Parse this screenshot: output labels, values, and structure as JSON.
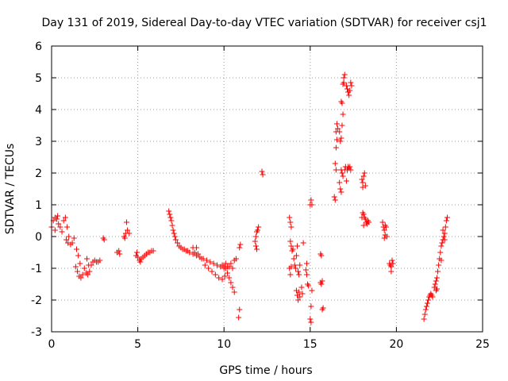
{
  "chart_data": {
    "type": "scatter",
    "title": "Day 131 of 2019, Sidereal Day-to-day VTEC variation (SDTVAR) for receiver csj1",
    "xlabel": "GPS time / hours",
    "ylabel": "SDTVAR / TECUs",
    "xlim": [
      0,
      25
    ],
    "ylim": [
      -3,
      6
    ],
    "xticks": [
      0,
      5,
      10,
      15,
      20,
      25
    ],
    "yticks": [
      -3,
      -2,
      -1,
      0,
      1,
      2,
      3,
      4,
      5,
      6
    ],
    "xtick_labels": [
      "0",
      "5",
      "10",
      "15",
      "20",
      "25"
    ],
    "ytick_labels": [
      "-3",
      "-2",
      "-1",
      "0",
      "1",
      "2",
      "3",
      "4",
      "5",
      "6"
    ],
    "grid": true,
    "marker": "+",
    "color": "#ff0000",
    "series": [
      {
        "name": "csj1",
        "points": [
          [
            0.0,
            0.3
          ],
          [
            0.1,
            0.5
          ],
          [
            0.2,
            0.6
          ],
          [
            0.3,
            0.55
          ],
          [
            0.4,
            0.4
          ],
          [
            0.5,
            0.3
          ],
          [
            0.6,
            0.15
          ],
          [
            0.7,
            0.5
          ],
          [
            0.8,
            0.6
          ],
          [
            0.9,
            0.3
          ],
          [
            1.0,
            0.0
          ],
          [
            1.1,
            -0.25
          ],
          [
            1.2,
            -0.2
          ],
          [
            1.3,
            -0.05
          ],
          [
            0.2,
            0.2
          ],
          [
            0.35,
            0.65
          ],
          [
            0.85,
            -0.1
          ],
          [
            0.95,
            -0.2
          ],
          [
            1.4,
            -0.95
          ],
          [
            1.5,
            -1.1
          ],
          [
            1.6,
            -1.25
          ],
          [
            1.7,
            -1.3
          ],
          [
            1.8,
            -1.2
          ],
          [
            1.9,
            -1.0
          ],
          [
            2.0,
            -1.15
          ],
          [
            2.1,
            -1.2
          ],
          [
            2.2,
            -1.1
          ],
          [
            2.3,
            -0.9
          ],
          [
            2.4,
            -0.8
          ],
          [
            2.5,
            -0.75
          ],
          [
            2.6,
            -0.8
          ],
          [
            2.7,
            -0.8
          ],
          [
            2.8,
            -0.75
          ],
          [
            1.45,
            -0.4
          ],
          [
            1.55,
            -0.6
          ],
          [
            1.65,
            -0.85
          ],
          [
            2.05,
            -0.7
          ],
          [
            2.15,
            -0.9
          ],
          [
            3.0,
            -0.05
          ],
          [
            3.05,
            -0.1
          ],
          [
            3.8,
            -0.5
          ],
          [
            3.9,
            -0.45
          ],
          [
            3.95,
            -0.55
          ],
          [
            4.2,
            0.0
          ],
          [
            4.3,
            0.1
          ],
          [
            4.4,
            0.2
          ],
          [
            4.5,
            0.1
          ],
          [
            4.35,
            0.45
          ],
          [
            4.25,
            -0.05
          ],
          [
            4.9,
            -0.6
          ],
          [
            5.0,
            -0.65
          ],
          [
            5.1,
            -0.75
          ],
          [
            5.2,
            -0.7
          ],
          [
            5.3,
            -0.65
          ],
          [
            5.4,
            -0.6
          ],
          [
            5.5,
            -0.55
          ],
          [
            5.6,
            -0.5
          ],
          [
            5.7,
            -0.5
          ],
          [
            5.8,
            -0.45
          ],
          [
            5.9,
            -0.45
          ],
          [
            4.95,
            -0.5
          ],
          [
            5.15,
            -0.8
          ],
          [
            6.8,
            0.8
          ],
          [
            6.85,
            0.7
          ],
          [
            6.9,
            0.6
          ],
          [
            6.95,
            0.5
          ],
          [
            7.0,
            0.35
          ],
          [
            7.05,
            0.2
          ],
          [
            7.1,
            0.1
          ],
          [
            7.15,
            0.0
          ],
          [
            7.2,
            -0.1
          ],
          [
            7.3,
            -0.2
          ],
          [
            7.4,
            -0.3
          ],
          [
            7.5,
            -0.35
          ],
          [
            7.6,
            -0.4
          ],
          [
            7.7,
            -0.4
          ],
          [
            7.8,
            -0.45
          ],
          [
            7.9,
            -0.45
          ],
          [
            8.0,
            -0.5
          ],
          [
            8.2,
            -0.55
          ],
          [
            8.4,
            -0.6
          ],
          [
            8.6,
            -0.65
          ],
          [
            8.8,
            -0.7
          ],
          [
            9.0,
            -0.75
          ],
          [
            9.2,
            -0.8
          ],
          [
            9.4,
            -0.85
          ],
          [
            9.6,
            -0.9
          ],
          [
            9.8,
            -0.95
          ],
          [
            10.0,
            -1.0
          ],
          [
            10.2,
            -0.95
          ],
          [
            10.4,
            -0.85
          ],
          [
            10.6,
            -0.75
          ],
          [
            10.7,
            -0.7
          ],
          [
            8.3,
            -0.5
          ],
          [
            8.5,
            -0.55
          ],
          [
            8.7,
            -0.7
          ],
          [
            8.9,
            -0.9
          ],
          [
            9.1,
            -1.0
          ],
          [
            9.3,
            -1.1
          ],
          [
            9.5,
            -1.2
          ],
          [
            9.7,
            -1.3
          ],
          [
            9.9,
            -1.35
          ],
          [
            10.05,
            -1.25
          ],
          [
            10.1,
            -1.0
          ],
          [
            10.2,
            -1.15
          ],
          [
            10.3,
            -1.3
          ],
          [
            10.4,
            -1.45
          ],
          [
            10.5,
            -1.6
          ],
          [
            10.6,
            -1.75
          ],
          [
            9.9,
            -0.9
          ],
          [
            10.0,
            -0.95
          ],
          [
            10.1,
            -0.85
          ],
          [
            10.3,
            -0.95
          ],
          [
            10.5,
            -1.0
          ],
          [
            8.4,
            -0.35
          ],
          [
            8.2,
            -0.35
          ],
          [
            10.9,
            -0.35
          ],
          [
            10.95,
            -0.25
          ],
          [
            10.9,
            -2.3
          ],
          [
            10.85,
            -2.55
          ],
          [
            11.8,
            -0.15
          ],
          [
            11.85,
            0.0
          ],
          [
            11.9,
            0.15
          ],
          [
            11.95,
            0.2
          ],
          [
            12.0,
            0.3
          ],
          [
            11.9,
            -0.4
          ],
          [
            11.85,
            -0.3
          ],
          [
            12.2,
            2.05
          ],
          [
            12.25,
            1.95
          ],
          [
            13.8,
            0.6
          ],
          [
            13.85,
            0.45
          ],
          [
            13.9,
            0.3
          ],
          [
            13.85,
            -0.15
          ],
          [
            13.9,
            -0.3
          ],
          [
            13.95,
            -0.45
          ],
          [
            13.8,
            -1.0
          ],
          [
            13.85,
            -1.2
          ],
          [
            13.9,
            -0.95
          ],
          [
            14.0,
            -0.4
          ],
          [
            14.05,
            -0.7
          ],
          [
            14.1,
            -0.9
          ],
          [
            14.15,
            -1.0
          ],
          [
            14.2,
            -0.6
          ],
          [
            14.25,
            -0.3
          ],
          [
            14.3,
            -1.1
          ],
          [
            14.35,
            -1.2
          ],
          [
            14.4,
            -0.9
          ],
          [
            14.2,
            -1.7
          ],
          [
            14.25,
            -1.85
          ],
          [
            14.3,
            -2.0
          ],
          [
            14.35,
            -1.75
          ],
          [
            14.4,
            -1.9
          ],
          [
            14.5,
            -1.6
          ],
          [
            14.55,
            -1.8
          ],
          [
            14.6,
            -0.2
          ],
          [
            14.8,
            -1.2
          ],
          [
            14.85,
            -1.5
          ],
          [
            14.9,
            -1.55
          ],
          [
            14.8,
            -0.85
          ],
          [
            14.75,
            -1.05
          ],
          [
            15.0,
            -2.6
          ],
          [
            15.05,
            -2.7
          ],
          [
            15.1,
            -1.7
          ],
          [
            15.05,
            -2.2
          ],
          [
            15.0,
            1.0
          ],
          [
            15.05,
            1.15
          ],
          [
            15.1,
            1.0
          ],
          [
            15.6,
            -0.55
          ],
          [
            15.65,
            -0.6
          ],
          [
            15.7,
            -1.4
          ],
          [
            15.65,
            -1.5
          ],
          [
            15.7,
            -2.3
          ],
          [
            15.75,
            -2.25
          ],
          [
            15.6,
            -1.45
          ],
          [
            16.4,
            1.25
          ],
          [
            16.45,
            1.15
          ],
          [
            16.5,
            2.1
          ],
          [
            16.45,
            2.3
          ],
          [
            16.5,
            2.8
          ],
          [
            16.55,
            3.05
          ],
          [
            16.5,
            3.3
          ],
          [
            16.6,
            3.4
          ],
          [
            16.55,
            3.55
          ],
          [
            16.7,
            3.3
          ],
          [
            16.75,
            3.0
          ],
          [
            16.8,
            3.1
          ],
          [
            16.85,
            3.5
          ],
          [
            16.9,
            3.85
          ],
          [
            16.8,
            4.25
          ],
          [
            16.85,
            4.2
          ],
          [
            16.9,
            4.8
          ],
          [
            16.95,
            5.0
          ],
          [
            17.0,
            5.1
          ],
          [
            16.95,
            4.85
          ],
          [
            16.8,
            2.1
          ],
          [
            16.85,
            2.0
          ],
          [
            16.9,
            1.9
          ],
          [
            17.0,
            2.1
          ],
          [
            17.05,
            2.2
          ],
          [
            17.1,
            1.75
          ],
          [
            17.15,
            2.1
          ],
          [
            17.2,
            2.2
          ],
          [
            17.25,
            2.15
          ],
          [
            17.3,
            2.2
          ],
          [
            17.35,
            2.1
          ],
          [
            16.7,
            1.7
          ],
          [
            16.75,
            1.5
          ],
          [
            16.8,
            1.4
          ],
          [
            17.1,
            4.75
          ],
          [
            17.15,
            4.65
          ],
          [
            17.2,
            4.55
          ],
          [
            17.25,
            4.45
          ],
          [
            17.3,
            4.6
          ],
          [
            17.35,
            4.85
          ],
          [
            17.4,
            4.75
          ],
          [
            18.0,
            1.8
          ],
          [
            18.05,
            1.7
          ],
          [
            18.1,
            1.9
          ],
          [
            18.15,
            2.0
          ],
          [
            18.2,
            1.6
          ],
          [
            18.05,
            1.55
          ],
          [
            18.0,
            0.6
          ],
          [
            18.05,
            0.75
          ],
          [
            18.1,
            0.7
          ],
          [
            18.15,
            0.6
          ],
          [
            18.2,
            0.55
          ],
          [
            18.25,
            0.45
          ],
          [
            18.3,
            0.4
          ],
          [
            18.35,
            0.5
          ],
          [
            18.4,
            0.45
          ],
          [
            18.1,
            0.35
          ],
          [
            19.2,
            0.45
          ],
          [
            19.25,
            0.3
          ],
          [
            19.3,
            0.2
          ],
          [
            19.35,
            0.35
          ],
          [
            19.4,
            0.3
          ],
          [
            19.45,
            0.0
          ],
          [
            19.35,
            0.05
          ],
          [
            19.3,
            -0.05
          ],
          [
            19.6,
            -0.85
          ],
          [
            19.65,
            -0.9
          ],
          [
            19.7,
            -0.95
          ],
          [
            19.75,
            -0.75
          ],
          [
            19.8,
            -0.85
          ],
          [
            19.7,
            -1.1
          ],
          [
            21.6,
            -2.6
          ],
          [
            21.65,
            -2.45
          ],
          [
            21.7,
            -2.3
          ],
          [
            21.75,
            -2.2
          ],
          [
            21.8,
            -2.1
          ],
          [
            21.85,
            -2.0
          ],
          [
            21.9,
            -1.9
          ],
          [
            21.95,
            -1.85
          ],
          [
            22.0,
            -1.8
          ],
          [
            22.05,
            -1.85
          ],
          [
            22.1,
            -1.9
          ],
          [
            22.2,
            -1.6
          ],
          [
            22.25,
            -1.5
          ],
          [
            22.3,
            -1.4
          ],
          [
            22.35,
            -1.3
          ],
          [
            22.4,
            -1.1
          ],
          [
            22.45,
            -0.9
          ],
          [
            22.5,
            -0.7
          ],
          [
            22.55,
            -0.5
          ],
          [
            22.6,
            -0.3
          ],
          [
            22.65,
            -0.2
          ],
          [
            22.7,
            -0.1
          ],
          [
            22.75,
            0.0
          ],
          [
            22.8,
            0.1
          ],
          [
            22.85,
            0.3
          ],
          [
            22.9,
            0.5
          ],
          [
            22.95,
            0.6
          ],
          [
            22.3,
            -1.7
          ],
          [
            22.35,
            -1.65
          ],
          [
            22.6,
            -0.75
          ],
          [
            22.7,
            0.2
          ],
          [
            22.8,
            -0.1
          ]
        ]
      }
    ]
  }
}
